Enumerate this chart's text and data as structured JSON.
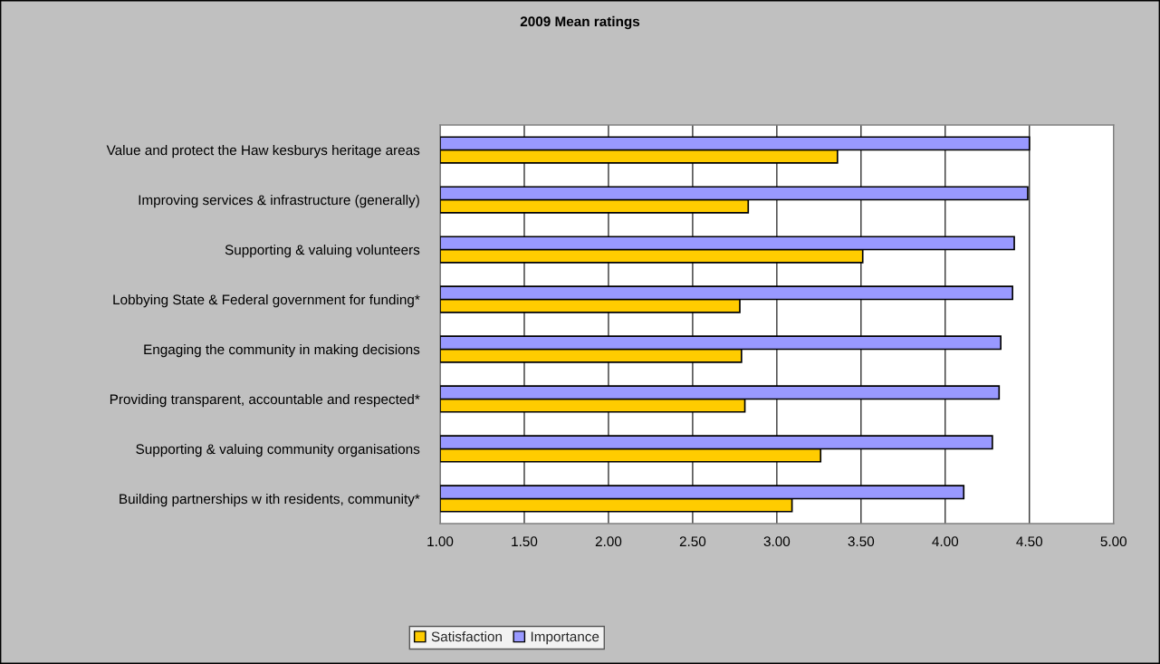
{
  "chart_data": {
    "type": "bar",
    "orientation": "horizontal",
    "title": "2009 Mean ratings",
    "categories": [
      "Value and protect the Haw kesburys heritage areas",
      "Improving services & infrastructure (generally)",
      "Supporting & valuing volunteers",
      "Lobbying State & Federal government for funding*",
      "Engaging the community in making decisions",
      "Providing transparent, accountable and respected*",
      "Supporting & valuing community organisations",
      "Building partnerships w ith residents, community*"
    ],
    "series": [
      {
        "name": "Satisfaction",
        "color": "#ffcc00",
        "values": [
          3.36,
          2.83,
          3.51,
          2.78,
          2.79,
          2.81,
          3.26,
          3.09
        ]
      },
      {
        "name": "Importance",
        "color": "#9999ff",
        "values": [
          4.5,
          4.49,
          4.41,
          4.4,
          4.33,
          4.32,
          4.28,
          4.11
        ]
      }
    ],
    "xlim": [
      1,
      5
    ],
    "xticks": [
      {
        "value": 1,
        "label": "1.00"
      },
      {
        "value": 1.5,
        "label": "1.50"
      },
      {
        "value": 2,
        "label": "2.00"
      },
      {
        "value": 2.5,
        "label": "2.50"
      },
      {
        "value": 3,
        "label": "3.00"
      },
      {
        "value": 3.5,
        "label": "3.50"
      },
      {
        "value": 4,
        "label": "4.00"
      },
      {
        "value": 4.5,
        "label": "4.50"
      },
      {
        "value": 5,
        "label": "5.00"
      }
    ],
    "grid": "x",
    "legend": "bottom"
  }
}
